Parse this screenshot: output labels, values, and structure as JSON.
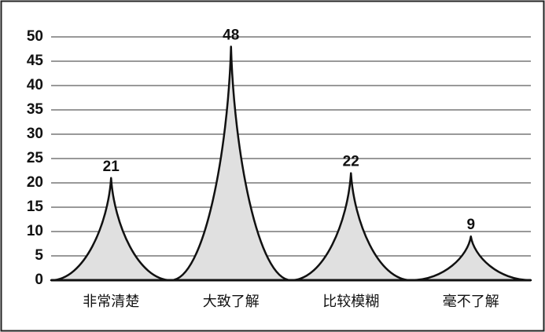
{
  "chart_data": {
    "type": "spike",
    "categories": [
      "非常清楚",
      "大致了解",
      "比较模糊",
      "毫不了解"
    ],
    "values": [
      21,
      48,
      22,
      9
    ],
    "color": "#e0e0e0",
    "ylim": [
      0,
      50
    ],
    "yticks": [
      0,
      5,
      10,
      15,
      20,
      25,
      30,
      35,
      40,
      45,
      50
    ],
    "grid": true
  }
}
